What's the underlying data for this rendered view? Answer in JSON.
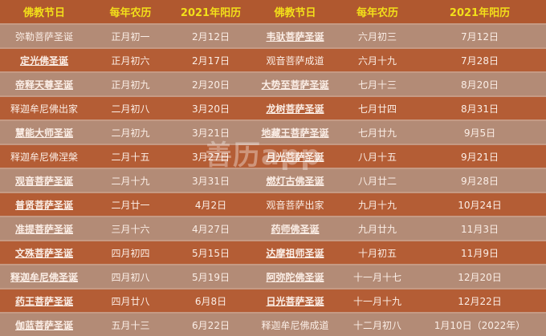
{
  "headers": [
    "佛教节日",
    "每年农历",
    "2021年阳历",
    "佛教节日",
    "每年农历",
    "2021年阳历"
  ],
  "watermark": "善历app",
  "rows": [
    {
      "left": {
        "name": "弥勒菩萨圣诞",
        "lunar": "正月初一",
        "date": "2月12日"
      },
      "right": {
        "name": "韦驮菩萨圣诞",
        "lunar": "六月初三",
        "date": "7月12日"
      }
    },
    {
      "left": {
        "name": "定光佛圣诞",
        "lunar": "正月初六",
        "date": "2月17日"
      },
      "right": {
        "name": "观音菩萨成道",
        "lunar": "六月十九",
        "date": "7月28日"
      }
    },
    {
      "left": {
        "name": "帝释天尊圣诞",
        "lunar": "正月初九",
        "date": "2月20日"
      },
      "right": {
        "name": "大势至菩萨圣诞",
        "lunar": "七月十三",
        "date": "8月20日"
      }
    },
    {
      "left": {
        "name": "释迦牟尼佛出家",
        "lunar": "二月初八",
        "date": "3月20日"
      },
      "right": {
        "name": "龙树菩萨圣诞",
        "lunar": "七月廿四",
        "date": "8月31日"
      }
    },
    {
      "left": {
        "name": "慧能大师圣诞",
        "lunar": "二月初九",
        "date": "3月21日"
      },
      "right": {
        "name": "地藏王菩萨圣诞",
        "lunar": "七月廿九",
        "date": "9月5日"
      }
    },
    {
      "left": {
        "name": "释迦牟尼佛涅槃",
        "lunar": "二月十五",
        "date": "3月27日"
      },
      "right": {
        "name": "月光菩萨圣诞",
        "lunar": "八月十五",
        "date": "9月21日"
      }
    },
    {
      "left": {
        "name": "观音菩萨圣诞",
        "lunar": "二月十九",
        "date": "3月31日"
      },
      "right": {
        "name": "燃灯古佛圣诞",
        "lunar": "八月廿二",
        "date": "9月28日"
      }
    },
    {
      "left": {
        "name": "普贤菩萨圣诞",
        "lunar": "二月廿一",
        "date": "4月2日"
      },
      "right": {
        "name": "观音菩萨出家",
        "lunar": "九月十九",
        "date": "10月24日"
      }
    },
    {
      "left": {
        "name": "准提菩萨圣诞",
        "lunar": "三月十六",
        "date": "4月27日"
      },
      "right": {
        "name": "药师佛圣诞",
        "lunar": "九月廿九",
        "date": "11月3日"
      }
    },
    {
      "left": {
        "name": "文殊菩萨圣诞",
        "lunar": "四月初四",
        "date": "5月15日"
      },
      "right": {
        "name": "达摩祖师圣诞",
        "lunar": "十月初五",
        "date": "11月9日"
      }
    },
    {
      "left": {
        "name": "释迦牟尼佛圣诞",
        "lunar": "四月初八",
        "date": "5月19日"
      },
      "right": {
        "name": "阿弥陀佛圣诞",
        "lunar": "十一月十七",
        "date": "12月20日"
      }
    },
    {
      "left": {
        "name": "药王菩萨圣诞",
        "lunar": "四月廿八",
        "date": "6月8日"
      },
      "right": {
        "name": "日光菩萨圣诞",
        "lunar": "十一月十九",
        "date": "12月22日"
      }
    },
    {
      "left": {
        "name": "伽蓝菩萨圣诞",
        "lunar": "五月十三",
        "date": "6月22日"
      },
      "right": {
        "name": "释迦牟尼佛成道",
        "lunar": "十二月初八",
        "date": "1月10日（2022年）"
      }
    }
  ],
  "plain_names": [
    "0.left",
    "3.left",
    "5.left",
    "1.right",
    "7.right",
    "12.right"
  ]
}
